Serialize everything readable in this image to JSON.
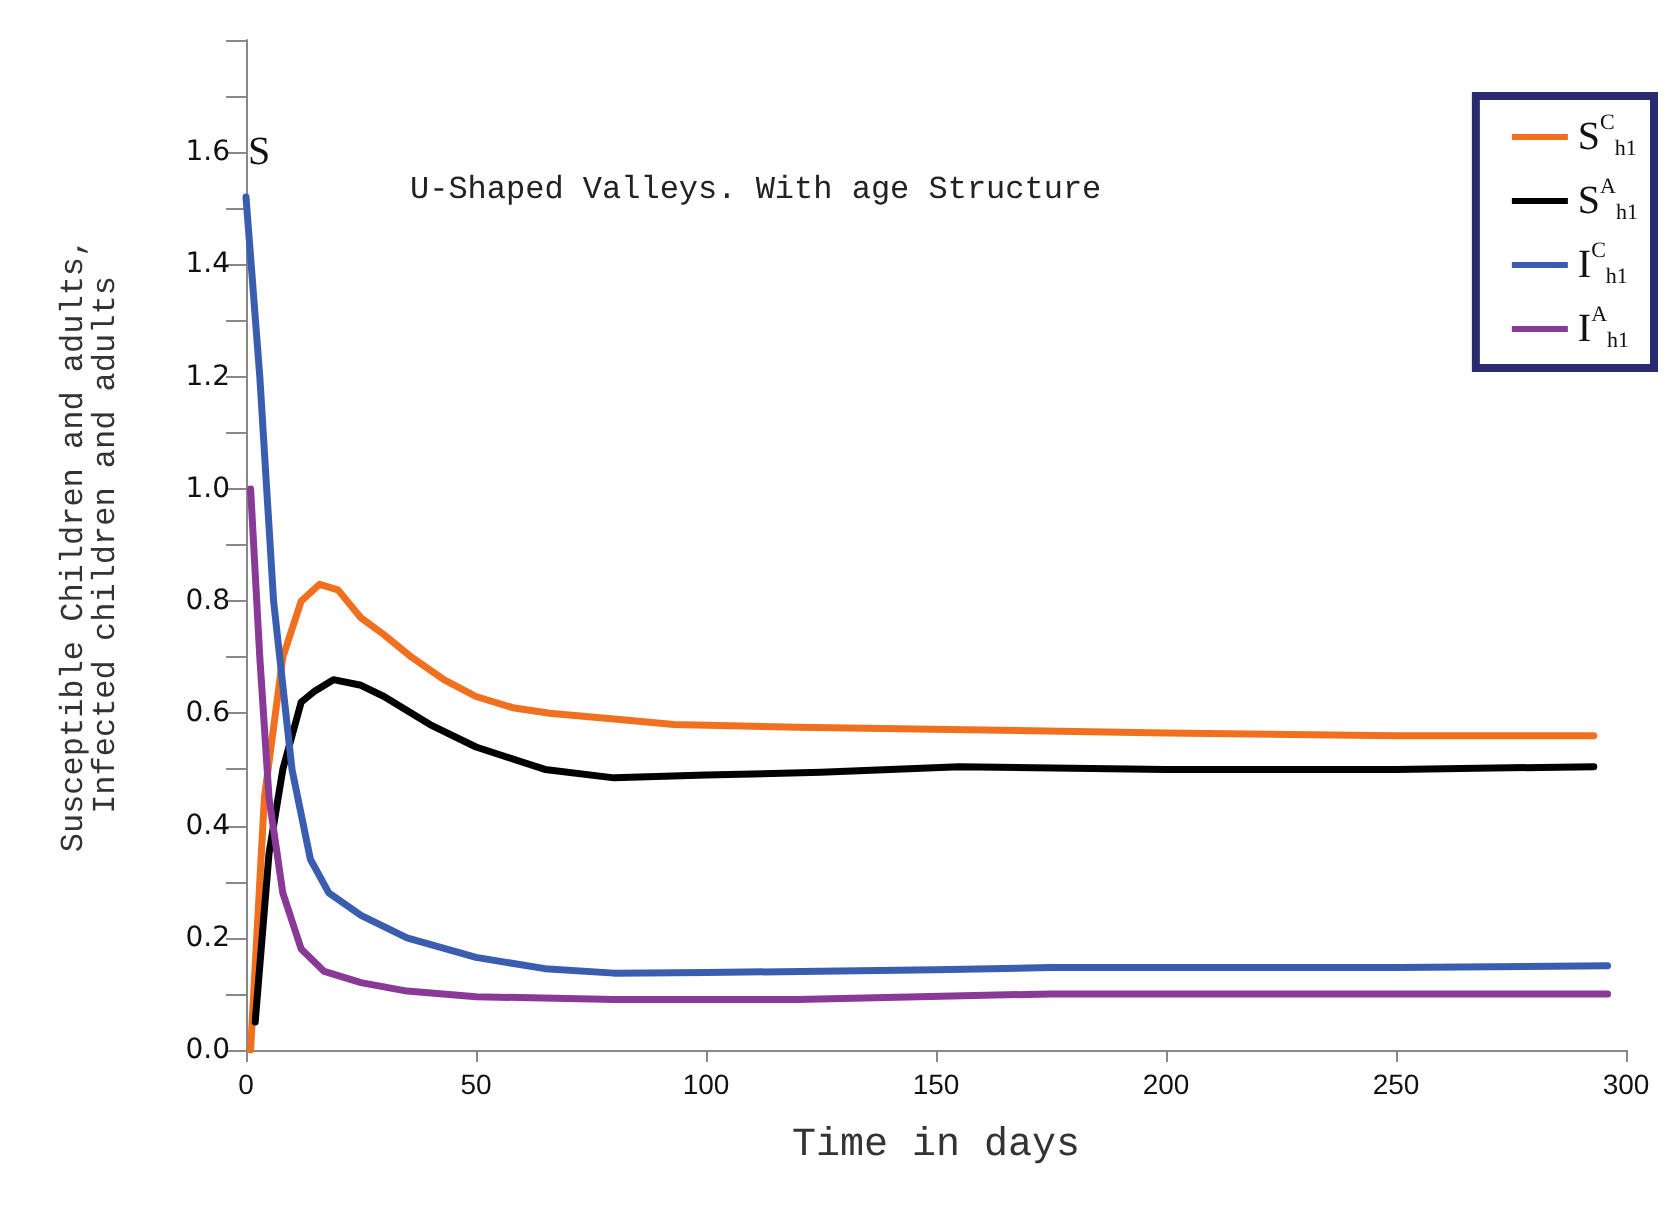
{
  "chart_data": {
    "type": "line",
    "title": "U-Shaped Valleys. With age Structure",
    "xlabel": "Time in days",
    "ylabel": "Susceptible Children and adults,\nInfected children and adults",
    "annotations": [
      "S"
    ],
    "xlim": [
      0,
      300
    ],
    "xticks": [
      0,
      50,
      100,
      150,
      200,
      250,
      300
    ],
    "ylim": [
      0,
      1.8
    ],
    "yticks": [
      {
        "value": 0,
        "label": "0.0"
      },
      {
        "value": 0.1,
        "label": null
      },
      0.2,
      {
        "value": 0.3,
        "label": null
      },
      0.4,
      {
        "value": 0.5,
        "label": null
      },
      0.6,
      {
        "value": 0.7,
        "label": null
      },
      0.8,
      {
        "value": 0.9,
        "label": null
      },
      {
        "value": 1,
        "label": "1.0"
      },
      {
        "value": 1.1,
        "label": null
      },
      1.2,
      {
        "value": 1.3,
        "label": null
      },
      1.4,
      {
        "value": 1.5,
        "label": null
      },
      1.6,
      {
        "value": 1.7,
        "label": null
      },
      {
        "value": 1.8,
        "label": null
      }
    ],
    "grid": false,
    "legend": "top right",
    "marker": "none",
    "line_style": "solid",
    "series": [
      {
        "name": "S$^{C}$$_{h1}$",
        "color": "#f07020",
        "x": [
          1,
          4,
          8,
          12,
          16,
          20,
          25,
          30,
          36,
          43,
          50,
          58,
          66,
          80,
          93,
          120,
          164,
          200,
          250,
          293
        ],
        "values": [
          0.0,
          0.45,
          0.7,
          0.8,
          0.83,
          0.82,
          0.77,
          0.74,
          0.7,
          0.66,
          0.63,
          0.61,
          0.6,
          0.59,
          0.58,
          0.575,
          0.57,
          0.565,
          0.56,
          0.56
        ]
      },
      {
        "name": "S$^{A}$$_{h1}$",
        "color": "#000000",
        "x": [
          2,
          5,
          8,
          12,
          15,
          19,
          25,
          30,
          40,
          50,
          65,
          80,
          100,
          125,
          155,
          200,
          250,
          293
        ],
        "values": [
          0.05,
          0.35,
          0.5,
          0.62,
          0.64,
          0.66,
          0.65,
          0.63,
          0.58,
          0.54,
          0.5,
          0.485,
          0.49,
          0.495,
          0.505,
          0.5,
          0.5,
          0.505
        ]
      },
      {
        "name": "I$^{C}$$_{h1}$",
        "color": "#3a5db0",
        "x": [
          0,
          3,
          6,
          10,
          14,
          18,
          25,
          35,
          50,
          65,
          80,
          100,
          150,
          175,
          250,
          296
        ],
        "values": [
          1.52,
          1.2,
          0.8,
          0.5,
          0.34,
          0.28,
          0.24,
          0.2,
          0.165,
          0.145,
          0.137,
          0.138,
          0.143,
          0.147,
          0.147,
          0.15
        ]
      },
      {
        "name": "I$^{A}$$_{h1}$",
        "color": "#883a96",
        "x": [
          1,
          3,
          5,
          8,
          12,
          17,
          25,
          35,
          50,
          80,
          120,
          175,
          250,
          296
        ],
        "values": [
          1.0,
          0.7,
          0.45,
          0.28,
          0.18,
          0.14,
          0.12,
          0.105,
          0.095,
          0.09,
          0.09,
          0.1,
          0.1,
          0.1
        ]
      }
    ]
  }
}
